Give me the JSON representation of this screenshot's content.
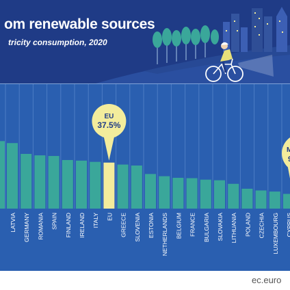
{
  "header": {
    "title": "om renewable sources",
    "subtitle": "tricity consumption, 2020"
  },
  "footer": {
    "url": "ec.euro"
  },
  "colors": {
    "header_bg": "#1f3b86",
    "plot_bg": "#2a5fb0",
    "bar": "#3aa79a",
    "eu_bar": "#f3ec9c",
    "callout": "#f3ec9c",
    "callout_text": "#1f3b86"
  },
  "callouts": {
    "eu": {
      "name": "EU",
      "value": "37.5%"
    },
    "right_partial": {
      "name": "M",
      "value": "9"
    }
  },
  "chart_data": {
    "type": "bar",
    "categories": [
      "LATVIA",
      "GERMANY",
      "ROMANIA",
      "SPAIN",
      "FINLAND",
      "IRELAND",
      "ITALY",
      "EU",
      "GREECE",
      "SLOVENIA",
      "ESTONIA",
      "NETHERLANDS",
      "BELGIUM",
      "FRANCE",
      "BULGARIA",
      "SLOVAKIA",
      "LITHUANIA",
      "POLAND",
      "CZECHIA",
      "LUXEMBOURG",
      "CYPRUS"
    ],
    "values": [
      53.4,
      44.6,
      43.4,
      42.9,
      39.6,
      39.1,
      38.1,
      37.5,
      35.9,
      35.1,
      28.2,
      26.4,
      25.1,
      24.8,
      23.6,
      23.1,
      20.2,
      16.2,
      14.8,
      13.9,
      12.0
    ],
    "highlight": "EU",
    "partial_left_value": 55.0,
    "partial_right_value": 8.0,
    "ylim": [
      0,
      102
    ],
    "grid": true
  }
}
